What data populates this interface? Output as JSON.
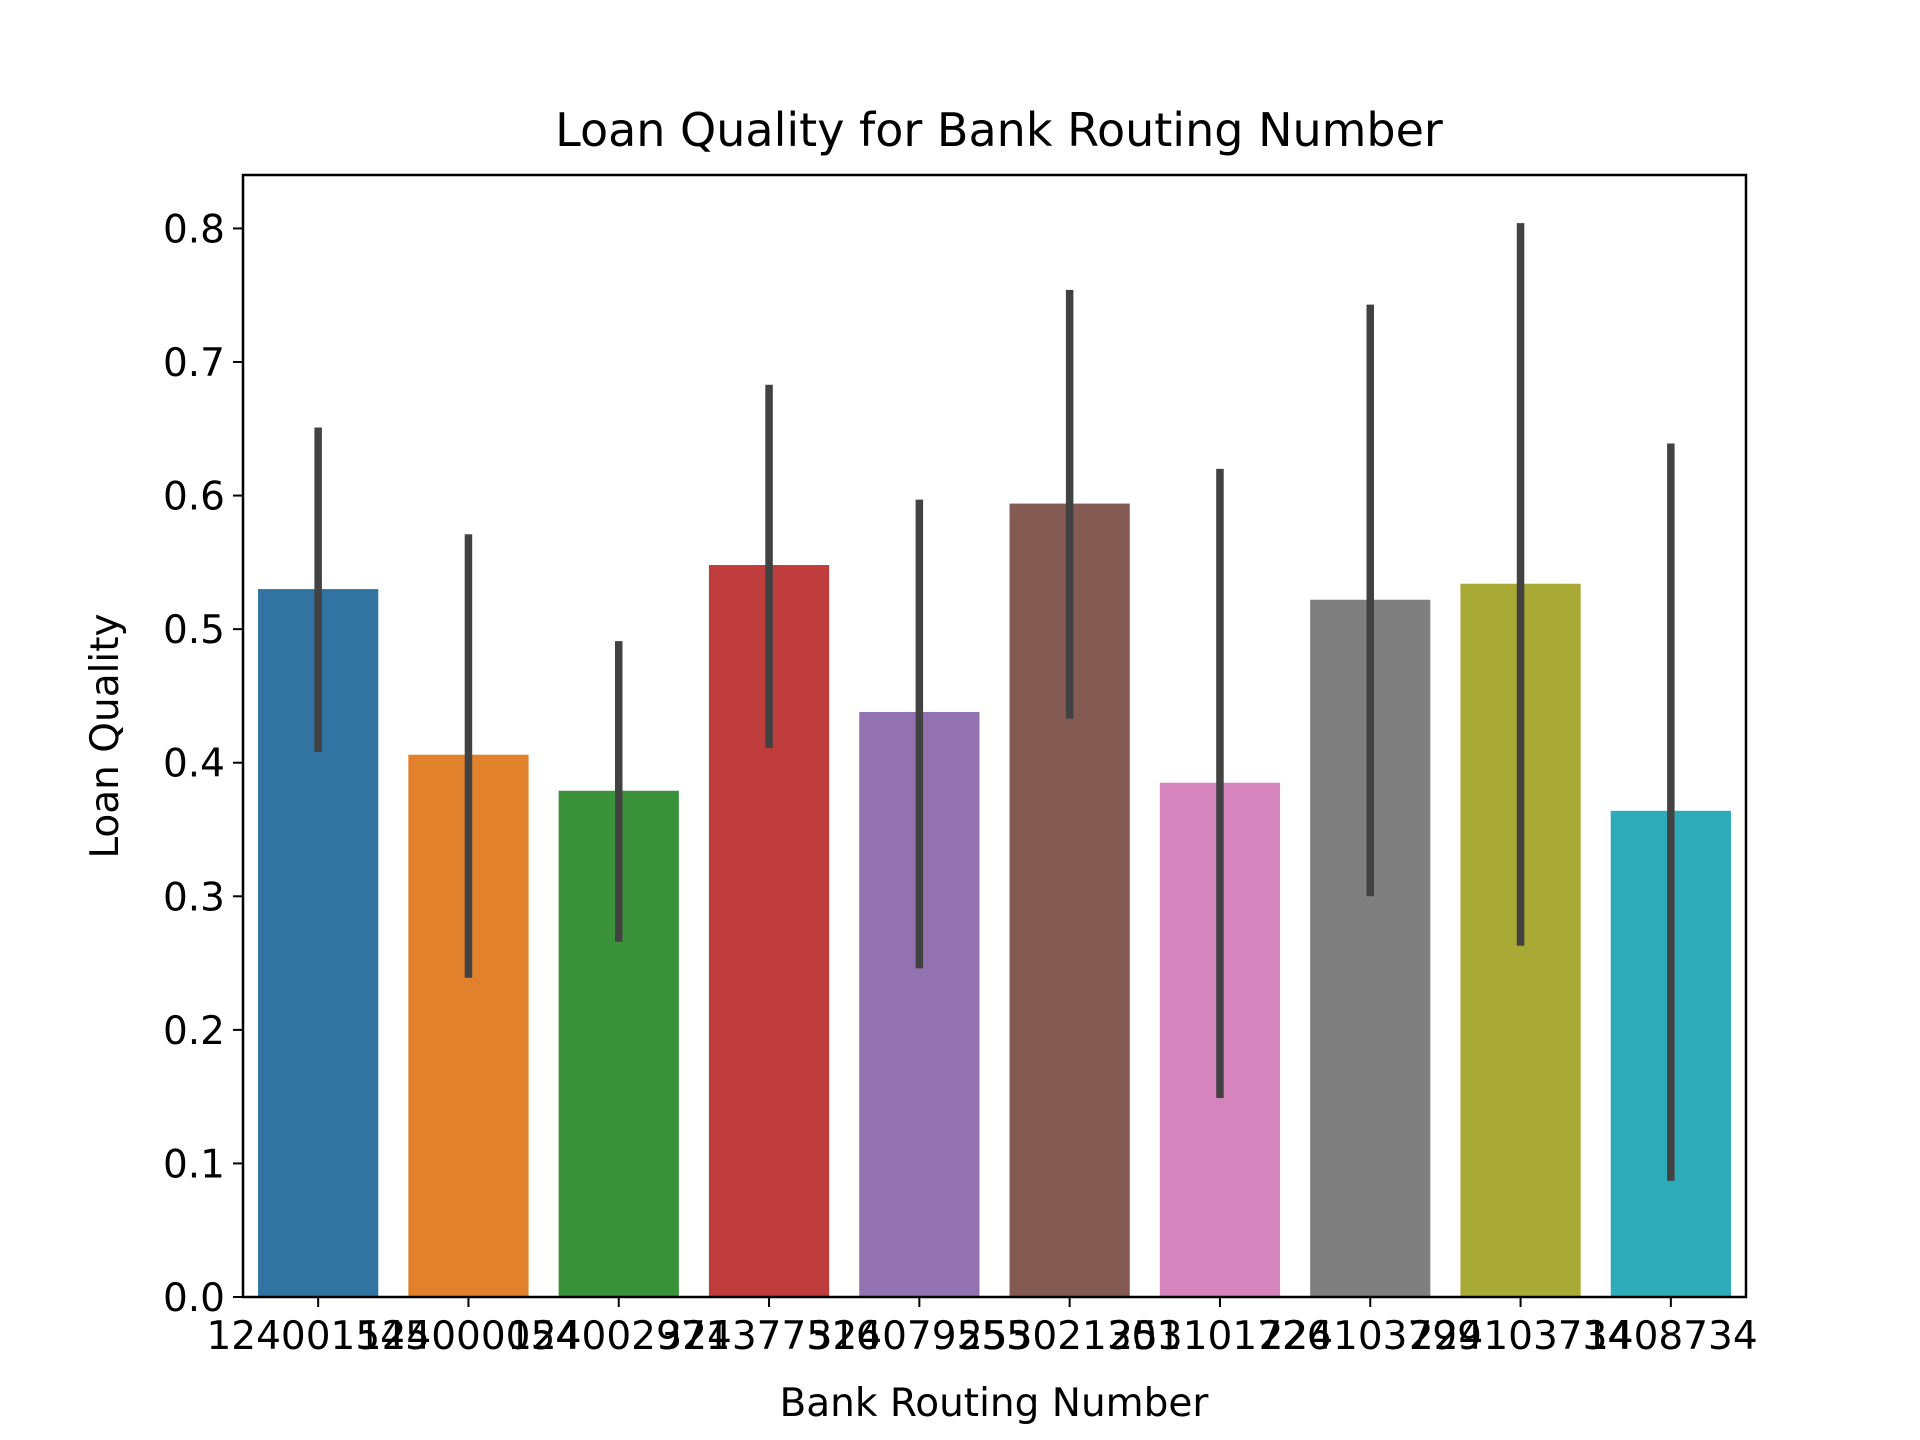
{
  "chart_data": {
    "type": "bar",
    "title": "Loan Quality for Bank Routing Number",
    "xlabel": "Bank Routing Number",
    "ylabel": "Loan Quality",
    "categories": [
      "124001545",
      "124000054",
      "124002971",
      "324377516",
      "324079555",
      "253021301",
      "253101726",
      "224103799",
      "224103734",
      "1408734"
    ],
    "values": [
      0.53,
      0.406,
      0.379,
      0.548,
      0.438,
      0.594,
      0.385,
      0.522,
      0.534,
      0.364
    ],
    "error_low": [
      0.408,
      0.239,
      0.266,
      0.411,
      0.246,
      0.433,
      0.149,
      0.3,
      0.263,
      0.087
    ],
    "error_high": [
      0.651,
      0.571,
      0.491,
      0.683,
      0.597,
      0.754,
      0.62,
      0.743,
      0.804,
      0.639
    ],
    "colors": [
      "#3274a1",
      "#e1812c",
      "#3a923a",
      "#c03d3e",
      "#9372b2",
      "#845b53",
      "#d684bd",
      "#7f7f7f",
      "#a9aa35",
      "#2eabb8"
    ],
    "errorbar_color": "#424242",
    "ylim": [
      0,
      0.84
    ],
    "yticks": [
      "0.0",
      "0.1",
      "0.2",
      "0.3",
      "0.4",
      "0.5",
      "0.6",
      "0.7",
      "0.8"
    ],
    "grid": false
  }
}
